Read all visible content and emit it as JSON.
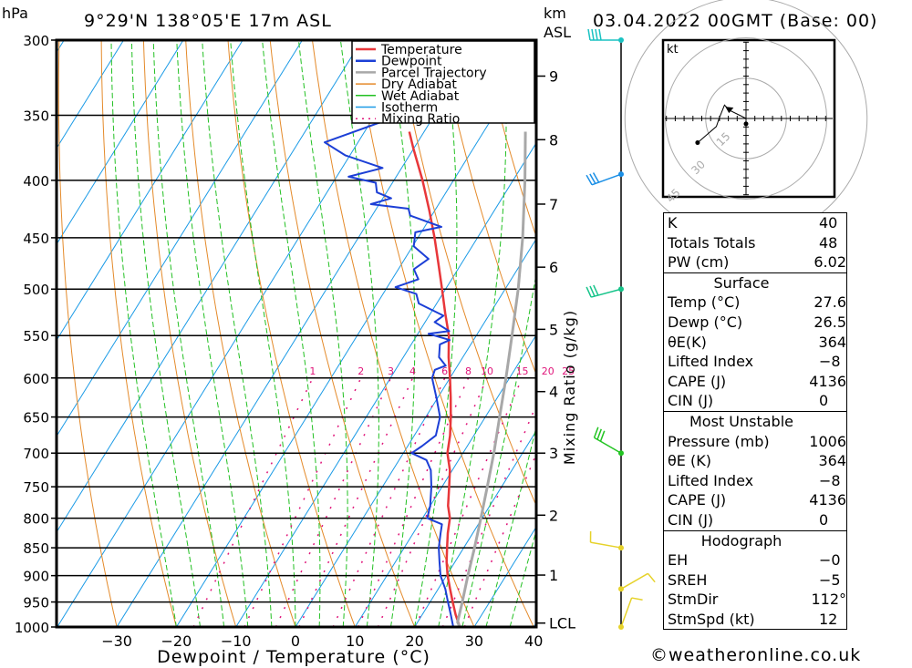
{
  "header": {
    "pressure_unit": "hPa",
    "location": "9°29'N  138°05'E  17m  ASL",
    "height_unit_line1": "km",
    "height_unit_line2": "ASL",
    "datetime": "03.04.2022  00GMT  (Base: 00)"
  },
  "legend": [
    {
      "label": "Temperature",
      "color": "#e8373a",
      "style": "solid"
    },
    {
      "label": "Dewpoint",
      "color": "#1c3fd6",
      "style": "solid"
    },
    {
      "label": "Parcel Trajectory",
      "color": "#a8a8a8",
      "style": "solid"
    },
    {
      "label": "Dry Adiabat",
      "color": "#e48a2a",
      "style": "solid"
    },
    {
      "label": "Wet Adiabat",
      "color": "#22c022",
      "style": "solid"
    },
    {
      "label": "Isotherm",
      "color": "#1a9ae6",
      "style": "solid"
    },
    {
      "label": "Mixing Ratio",
      "color": "#e0157a",
      "style": "dotted"
    }
  ],
  "chart_data": {
    "type": "line",
    "title": "Skew-T log-P sounding",
    "xlabel": "Dewpoint / Temperature (°C)",
    "ylabel": "hPa",
    "right_axis_label": "Mixing Ratio (g/kg)",
    "xlim": [
      -40,
      40
    ],
    "ylim": [
      1000,
      300
    ],
    "x_ticks": [
      -30,
      -20,
      -10,
      0,
      10,
      20,
      30,
      40
    ],
    "pressure_ticks": [
      300,
      350,
      400,
      450,
      500,
      550,
      600,
      650,
      700,
      750,
      800,
      850,
      900,
      950,
      1000
    ],
    "km_ticks": [
      {
        "label": "9",
        "p": 323
      },
      {
        "label": "8",
        "p": 368
      },
      {
        "label": "7",
        "p": 420
      },
      {
        "label": "6",
        "p": 478
      },
      {
        "label": "5",
        "p": 543
      },
      {
        "label": "4",
        "p": 617
      },
      {
        "label": "3",
        "p": 700
      },
      {
        "label": "2",
        "p": 795
      },
      {
        "label": "1",
        "p": 899
      },
      {
        "label": "LCL",
        "p": 992
      }
    ],
    "mixing_ratio_labels": [
      "1",
      "2",
      "3",
      "4",
      "6",
      "8",
      "10",
      "15",
      "20",
      "25"
    ],
    "grid": true,
    "series": [
      {
        "name": "Temperature",
        "points": [
          [
            1000,
            27.6
          ],
          [
            975,
            25.6
          ],
          [
            950,
            23.8
          ],
          [
            925,
            22.0
          ],
          [
            900,
            20.2
          ],
          [
            875,
            18.6
          ],
          [
            850,
            17.2
          ],
          [
            825,
            15.8
          ],
          [
            800,
            14.6
          ],
          [
            780,
            13.0
          ],
          [
            750,
            11.2
          ],
          [
            725,
            9.6
          ],
          [
            700,
            7.4
          ],
          [
            675,
            6.0
          ],
          [
            650,
            4.2
          ],
          [
            625,
            2.2
          ],
          [
            600,
            0.0
          ],
          [
            575,
            -2.4
          ],
          [
            550,
            -4.6
          ],
          [
            525,
            -7.6
          ],
          [
            500,
            -10.6
          ],
          [
            475,
            -13.8
          ],
          [
            450,
            -17.2
          ],
          [
            425,
            -21.0
          ],
          [
            400,
            -25.2
          ],
          [
            375,
            -30.0
          ],
          [
            362,
            -32.5
          ]
        ]
      },
      {
        "name": "Temperature (upper)",
        "points": [
          [
            340,
            -38.0
          ],
          [
            325,
            -41.5
          ],
          [
            310,
            -44.6
          ],
          [
            300,
            -47.0
          ]
        ]
      },
      {
        "name": "Dewpoint",
        "points": [
          [
            1000,
            26.5
          ],
          [
            975,
            24.8
          ],
          [
            950,
            23.0
          ],
          [
            925,
            21.2
          ],
          [
            900,
            19.0
          ],
          [
            875,
            17.4
          ],
          [
            850,
            15.8
          ],
          [
            825,
            14.6
          ],
          [
            810,
            13.9
          ],
          [
            800,
            10.8
          ],
          [
            780,
            10.0
          ],
          [
            750,
            8.2
          ],
          [
            725,
            6.4
          ],
          [
            710,
            4.6
          ],
          [
            700,
            1.4
          ],
          [
            690,
            2.4
          ],
          [
            675,
            3.6
          ],
          [
            650,
            2.4
          ],
          [
            625,
            -0.2
          ],
          [
            600,
            -3.0
          ],
          [
            590,
            -3.4
          ],
          [
            585,
            -2.0
          ],
          [
            575,
            -4.0
          ],
          [
            560,
            -5.2
          ],
          [
            555,
            -4.0
          ],
          [
            548,
            -8.2
          ],
          [
            545,
            -5.0
          ],
          [
            535,
            -8.4
          ],
          [
            528,
            -7.6
          ],
          [
            515,
            -13.0
          ],
          [
            505,
            -14.4
          ],
          [
            498,
            -18.6
          ],
          [
            490,
            -15.6
          ],
          [
            480,
            -17.4
          ],
          [
            470,
            -16.0
          ],
          [
            458,
            -19.8
          ],
          [
            445,
            -21.0
          ],
          [
            440,
            -17.2
          ],
          [
            430,
            -23.6
          ],
          [
            424,
            -24.6
          ],
          [
            420,
            -31.4
          ],
          [
            415,
            -28.6
          ],
          [
            410,
            -31.6
          ],
          [
            402,
            -32.8
          ],
          [
            397,
            -38.0
          ],
          [
            390,
            -33.2
          ],
          [
            380,
            -40.8
          ],
          [
            370,
            -45.6
          ],
          [
            352,
            -36.8
          ],
          [
            345,
            -44.5
          ],
          [
            340,
            -41.5
          ],
          [
            330,
            -44.2
          ],
          [
            320,
            -47.5
          ],
          [
            313,
            -43.8
          ],
          [
            305,
            -44.6
          ],
          [
            300,
            -43.2
          ]
        ]
      },
      {
        "name": "Parcel Trajectory",
        "points": [
          [
            1000,
            27.6
          ],
          [
            990,
            26.7
          ],
          [
            950,
            25.4
          ],
          [
            900,
            23.6
          ],
          [
            850,
            21.8
          ],
          [
            800,
            19.8
          ],
          [
            750,
            17.6
          ],
          [
            700,
            15.2
          ],
          [
            650,
            12.4
          ],
          [
            600,
            9.4
          ],
          [
            550,
            6.0
          ],
          [
            500,
            2.2
          ],
          [
            450,
            -2.4
          ],
          [
            400,
            -8.0
          ],
          [
            362,
            -13.0
          ]
        ]
      }
    ]
  },
  "wind_profile": [
    {
      "p": 300,
      "color": "#1ac2c2",
      "dir_deg": 270,
      "speed_kt": 35
    },
    {
      "p": 395,
      "color": "#1a8fe6",
      "dir_deg": 250,
      "speed_kt": 30
    },
    {
      "p": 500,
      "color": "#16c48a",
      "dir_deg": 255,
      "speed_kt": 25
    },
    {
      "p": 700,
      "color": "#22c422",
      "dir_deg": 300,
      "speed_kt": 25
    },
    {
      "p": 850,
      "color": "#e6d22a",
      "dir_deg": 280,
      "speed_kt": 5
    },
    {
      "p": 925,
      "color": "#e6d22a",
      "dir_deg": 60,
      "speed_kt": 5
    },
    {
      "p": 1000,
      "color": "#e6d22a",
      "dir_deg": 20,
      "speed_kt": 5
    }
  ],
  "hodograph": {
    "unit": "kt",
    "rings": [
      "15",
      "30",
      "45"
    ],
    "trace": [
      [
        0,
        0
      ],
      [
        -2,
        1
      ],
      [
        -6,
        3
      ],
      [
        -8,
        5
      ],
      [
        -10,
        0
      ],
      [
        -11,
        -3
      ],
      [
        -18,
        -9
      ]
    ],
    "storm_motion_arrow": [
      -6,
      3
    ],
    "surface_point": [
      0,
      -2
    ]
  },
  "indices": {
    "general": [
      {
        "label": "K",
        "value": "40"
      },
      {
        "label": "Totals Totals",
        "value": "48"
      },
      {
        "label": "PW (cm)",
        "value": "6.02"
      }
    ],
    "surface": {
      "title": "Surface",
      "rows": [
        {
          "label": "Temp (°C)",
          "value": "27.6"
        },
        {
          "label": "Dewp (°C)",
          "value": "26.5"
        },
        {
          "label": "θE(K)",
          "value": "364"
        },
        {
          "label": "Lifted Index",
          "value": "−8"
        },
        {
          "label": "CAPE (J)",
          "value": "4136"
        },
        {
          "label": "CIN (J)",
          "value": "0"
        }
      ]
    },
    "most_unstable": {
      "title": "Most Unstable",
      "rows": [
        {
          "label": "Pressure (mb)",
          "value": "1006"
        },
        {
          "label": "θE (K)",
          "value": "364"
        },
        {
          "label": "Lifted Index",
          "value": "−8"
        },
        {
          "label": "CAPE (J)",
          "value": "4136"
        },
        {
          "label": "CIN (J)",
          "value": "0"
        }
      ]
    },
    "hodograph": {
      "title": "Hodograph",
      "rows": [
        {
          "label": "EH",
          "value": "−0"
        },
        {
          "label": "SREH",
          "value": "−5"
        },
        {
          "label": "StmDir",
          "value": "112°"
        },
        {
          "label": "StmSpd (kt)",
          "value": "12"
        }
      ]
    }
  },
  "footer": {
    "copyright": "©weatheronline.co.uk"
  }
}
